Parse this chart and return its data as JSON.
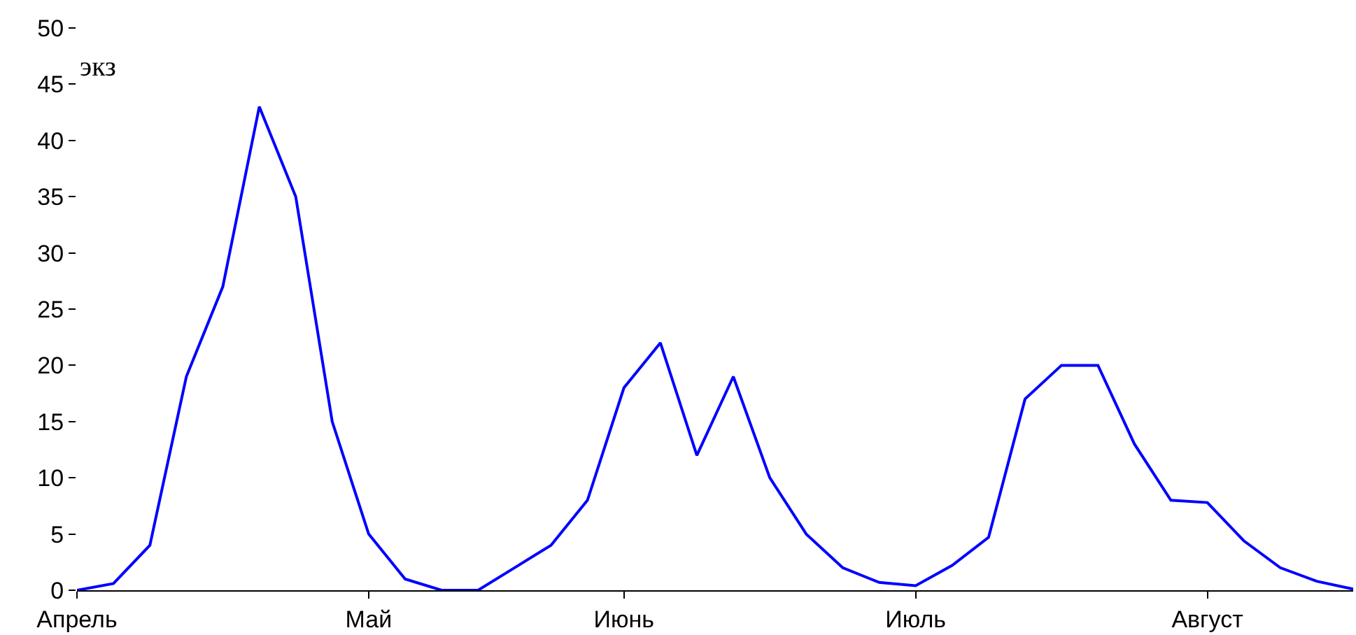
{
  "chart_data": {
    "type": "line",
    "ylabel": "экз",
    "categories": [
      "Апрель",
      null,
      null,
      null,
      null,
      null,
      null,
      null,
      "Май",
      null,
      null,
      null,
      null,
      null,
      null,
      "Июнь",
      null,
      null,
      null,
      null,
      null,
      null,
      null,
      "Июль",
      null,
      null,
      null,
      null,
      null,
      null,
      null,
      "Август",
      null,
      null,
      null,
      null
    ],
    "series": [
      {
        "color": "#0000ff",
        "values": [
          0,
          0.6,
          4,
          19,
          27,
          43,
          35,
          15,
          5,
          1,
          0,
          0,
          2,
          4,
          8,
          18,
          22,
          12,
          19,
          10,
          5,
          2,
          0.7,
          0.4,
          2.2,
          4.7,
          17,
          20,
          20,
          13,
          8,
          7.8,
          4.4,
          2,
          0.8,
          0.1
        ]
      }
    ],
    "ylim": [
      0,
      50
    ],
    "yticks": [
      0,
      5,
      10,
      15,
      20,
      25,
      30,
      35,
      40,
      45,
      50
    ],
    "grid": false,
    "legend": false,
    "marker": "none",
    "line_style": "solid"
  }
}
